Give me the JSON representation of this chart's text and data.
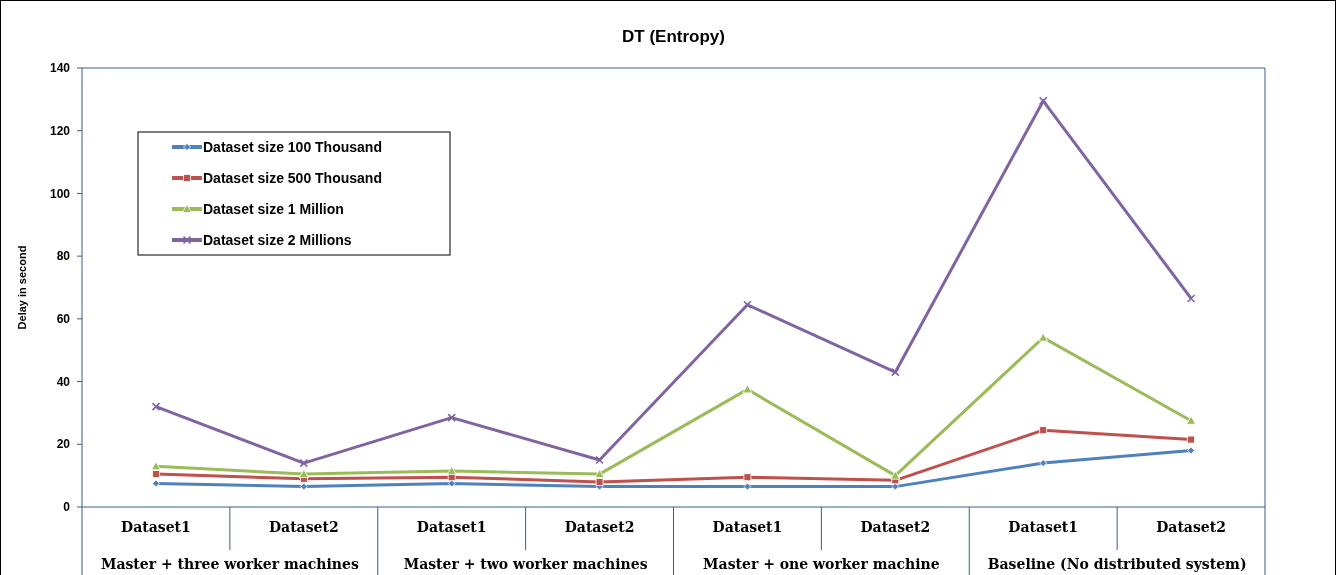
{
  "chart_data": {
    "type": "line",
    "title": "DT (Entropy)",
    "ylabel": "Delay in second",
    "categories": [
      "Dataset1",
      "Dataset2",
      "Dataset1",
      "Dataset2",
      "Dataset1",
      "Dataset2",
      "Dataset1",
      "Dataset2"
    ],
    "annotations": [
      "Master + three worker machines",
      "Master + two worker machines",
      "Master + one worker machine",
      "Baseline (No distributed system)"
    ],
    "series": [
      {
        "name": "Dataset size  100 Thousand",
        "color": "#4f81bd",
        "marker": "diamond",
        "values": [
          7.5,
          6.5,
          7.5,
          6.5,
          6.5,
          6.5,
          14,
          18
        ]
      },
      {
        "name": "Dataset size  500 Thousand",
        "color": "#c0504d",
        "marker": "square",
        "values": [
          10.5,
          9,
          9.5,
          8,
          9.5,
          8.5,
          24.5,
          21.5
        ]
      },
      {
        "name": "Dataset size  1 Million",
        "color": "#9bbb59",
        "marker": "triangle",
        "values": [
          13,
          10.5,
          11.5,
          10.5,
          37.5,
          10,
          54,
          27.5
        ]
      },
      {
        "name": "Dataset size  2 Millions",
        "color": "#8064a2",
        "marker": "cross",
        "values": [
          32,
          14,
          28.5,
          15,
          64.5,
          43,
          129.5,
          66.5
        ]
      }
    ],
    "ylim": [
      0,
      140
    ],
    "yticks": [
      0,
      20,
      40,
      60,
      80,
      100,
      120,
      140
    ],
    "grid": false,
    "legend": "top left"
  }
}
